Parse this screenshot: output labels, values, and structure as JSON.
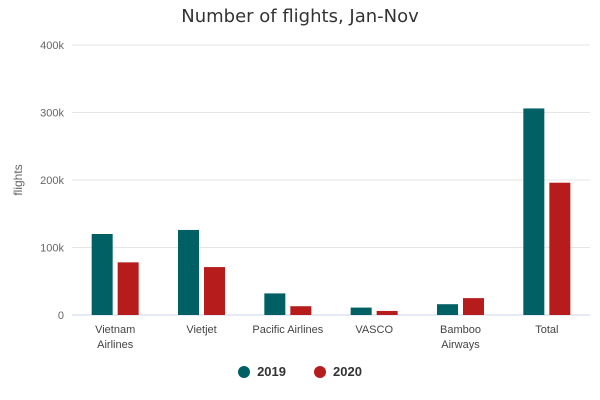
{
  "chart_data": {
    "type": "bar",
    "title": "Number of flights, Jan-Nov",
    "ylabel": "flights",
    "ylim": [
      0,
      400000
    ],
    "yticks": [
      {
        "value": 0,
        "label": "0"
      },
      {
        "value": 100000,
        "label": "100k"
      },
      {
        "value": 200000,
        "label": "200k"
      },
      {
        "value": 300000,
        "label": "300k"
      },
      {
        "value": 400000,
        "label": "400k"
      }
    ],
    "categories": [
      [
        "Vietnam",
        "Airlines"
      ],
      [
        "Vietjet"
      ],
      [
        "Pacific Airlines"
      ],
      [
        "VASCO"
      ],
      [
        "Bamboo",
        "Airways"
      ],
      [
        "Total"
      ]
    ],
    "series": [
      {
        "name": "2019",
        "color": "#006064",
        "values": [
          120000,
          126000,
          32000,
          11000,
          16000,
          306000
        ]
      },
      {
        "name": "2020",
        "color": "#b71c1c",
        "values": [
          78000,
          71000,
          13000,
          6000,
          25000,
          196000
        ]
      }
    ],
    "legend_position": "bottom",
    "grid": true
  }
}
